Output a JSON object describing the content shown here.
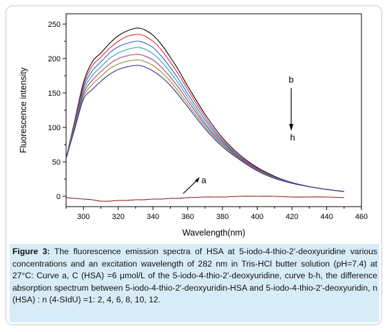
{
  "chart_data": {
    "type": "line",
    "xlabel": "Wavelength(nm)",
    "ylabel": "Fluorescence intensity",
    "xlim": [
      290,
      460
    ],
    "ylim": [
      -15,
      265
    ],
    "xticks": [
      300,
      320,
      340,
      360,
      380,
      400,
      420,
      440,
      460
    ],
    "yticks": [
      0,
      50,
      100,
      150,
      200,
      250
    ],
    "x": [
      290,
      295,
      300,
      305,
      310,
      315,
      320,
      325,
      330,
      332,
      335,
      340,
      345,
      350,
      355,
      360,
      370,
      380,
      390,
      400,
      410,
      420,
      430,
      440,
      450
    ],
    "series": [
      {
        "name": "b",
        "color": "#000000",
        "values": [
          55,
          110,
          165,
          195,
          208,
          222,
          233,
          240,
          244,
          244,
          242,
          234,
          220,
          202,
          182,
          160,
          119,
          85,
          60,
          42,
          29,
          20,
          14,
          10,
          7
        ]
      },
      {
        "name": "",
        "color": "#e8262a",
        "values": [
          55,
          108,
          161,
          189,
          202,
          215,
          225,
          232,
          235,
          235,
          233,
          225,
          212,
          195,
          176,
          155,
          115,
          82,
          58,
          41,
          28,
          20,
          14,
          10,
          7
        ]
      },
      {
        "name": "",
        "color": "#2d5bd8",
        "values": [
          55,
          106,
          157,
          182,
          195,
          208,
          217,
          222,
          225,
          225,
          223,
          216,
          203,
          187,
          169,
          149,
          111,
          80,
          57,
          40,
          28,
          20,
          14,
          10,
          7
        ]
      },
      {
        "name": "",
        "color": "#1aa6a6",
        "values": [
          55,
          104,
          153,
          175,
          188,
          200,
          208,
          213,
          216,
          216,
          214,
          207,
          195,
          180,
          163,
          144,
          107,
          78,
          56,
          39,
          27,
          19,
          14,
          10,
          7
        ]
      },
      {
        "name": "",
        "color": "#b2347a",
        "values": [
          55,
          102,
          149,
          168,
          181,
          192,
          200,
          204,
          206,
          206,
          204,
          198,
          187,
          173,
          157,
          139,
          104,
          76,
          55,
          39,
          27,
          19,
          14,
          10,
          7
        ]
      },
      {
        "name": "",
        "color": "#8a8a2a",
        "values": [
          55,
          100,
          145,
          162,
          174,
          185,
          192,
          196,
          198,
          198,
          196,
          190,
          180,
          167,
          151,
          134,
          101,
          74,
          54,
          38,
          27,
          19,
          14,
          10,
          7
        ]
      },
      {
        "name": "h",
        "color": "#2a2a8c",
        "values": [
          55,
          98,
          141,
          155,
          167,
          177,
          184,
          188,
          190,
          190,
          188,
          182,
          173,
          161,
          146,
          130,
          98,
          72,
          53,
          37,
          26,
          19,
          14,
          10,
          7
        ]
      },
      {
        "name": "a",
        "color": "#8b1a1a",
        "values": [
          -2,
          -3,
          -4,
          -5,
          -7,
          -7,
          -6,
          -6,
          -5,
          -5,
          -5,
          -4,
          -4,
          -3,
          -3,
          -2,
          -1,
          -1,
          0,
          0,
          0,
          -1,
          -1,
          -1,
          -2
        ]
      }
    ],
    "annotations": {
      "b": "b",
      "h": "h",
      "a": "a"
    }
  },
  "caption": {
    "label": "Figure 3:",
    "text": "The fluorescence emission spectra of HSA at 5-iodo-4-thio-2'-deoxyuridine various concentrations and an excitation wavelength of 282 nm in Tris-HCl butter solution (pH=7.4) at 27°C: Curve a, C (HSA) =6 μmol/L of the 5-iodo-4-thio-2'-deoxyuridine, curve b-h, the difference absorption spectrum between 5-iodo-4-thio-2'-deoxyuridin-HSA and 5-iodo-4-thio-2'-deoxyuridin, n (HSA) : n (4-SIdU) =1: 2, 4, 6, 8, 10, 12."
  }
}
